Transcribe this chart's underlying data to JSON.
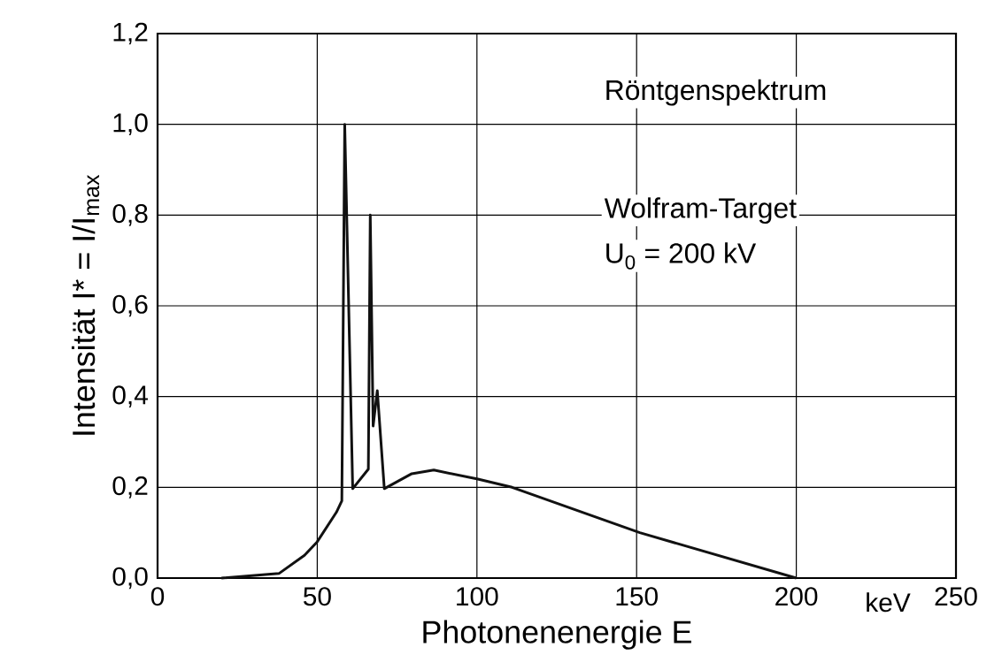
{
  "chart_data": {
    "type": "line",
    "xlabel": "Photonenenergie E",
    "ylabel": "Intensität I* = I/I$_{max}$",
    "annotations": [
      "Röntgenspektrum",
      "Wolfram-Target",
      "U$_{0}$ = 200 kV",
      "keV"
    ],
    "x": [
      20,
      38,
      46,
      50,
      56,
      57.7,
      58.6,
      61.1,
      66,
      66.6,
      67.5,
      68.8,
      71,
      79.6,
      86.5,
      100.3,
      111,
      151,
      200
    ],
    "series": [
      {
        "color": "#111111",
        "values": [
          0,
          0.01,
          0.05,
          0.08,
          0.145,
          0.17,
          1.0,
          0.197,
          0.24,
          0.8,
          0.335,
          0.413,
          0.197,
          0.23,
          0.238,
          0.218,
          0.2,
          0.1,
          0
        ]
      }
    ],
    "xlim": [
      0,
      250
    ],
    "ylim": [
      0,
      1.2
    ],
    "xticks": [
      0,
      50,
      100,
      150,
      200,
      250
    ],
    "yticks": [
      {
        "value": 0,
        "label": "0,0"
      },
      {
        "value": 0.2,
        "label": "0,2"
      },
      {
        "value": 0.4,
        "label": "0,4"
      },
      {
        "value": 0.6,
        "label": "0,6"
      },
      {
        "value": 0.8,
        "label": "0,8"
      },
      {
        "value": 1.0,
        "label": "1,0"
      },
      {
        "value": 1.2,
        "label": "1,2"
      }
    ],
    "grid": true,
    "marker": "none",
    "line_style": "solid"
  }
}
